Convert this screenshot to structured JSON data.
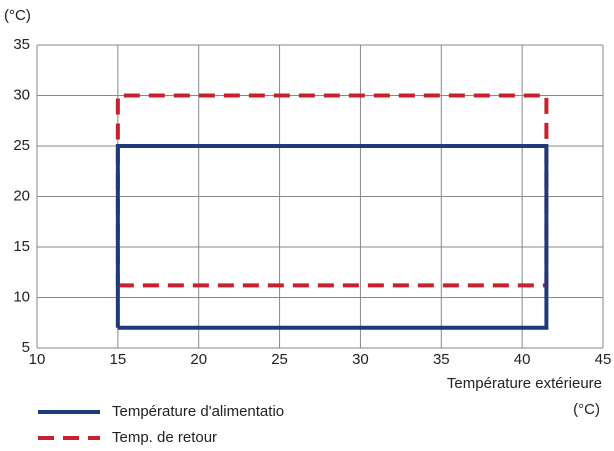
{
  "chart_data": {
    "type": "line",
    "y_label": "(°C)",
    "x_label": "Température extérieure",
    "x_unit": "(°C)",
    "series": [
      {
        "name": "Temp. de retour",
        "color": "#c8202e",
        "dashed": true,
        "x": [
          15,
          41.5,
          41.5,
          15,
          15
        ],
        "values": [
          11.2,
          11.2,
          30,
          30,
          11.2
        ]
      },
      {
        "name": "Température d'alimentatio",
        "color": "#1f3a7a",
        "dashed": false,
        "x": [
          15,
          41.5,
          41.5,
          15,
          15
        ],
        "values": [
          7,
          7,
          25,
          25,
          7
        ]
      }
    ],
    "xlim": [
      10,
      45
    ],
    "xticks": [
      10,
      15,
      20,
      25,
      30,
      35,
      40,
      45
    ],
    "ylim": [
      5,
      35
    ],
    "yticks": [
      5,
      10,
      15,
      20,
      25,
      30,
      35
    ],
    "grid": true
  }
}
